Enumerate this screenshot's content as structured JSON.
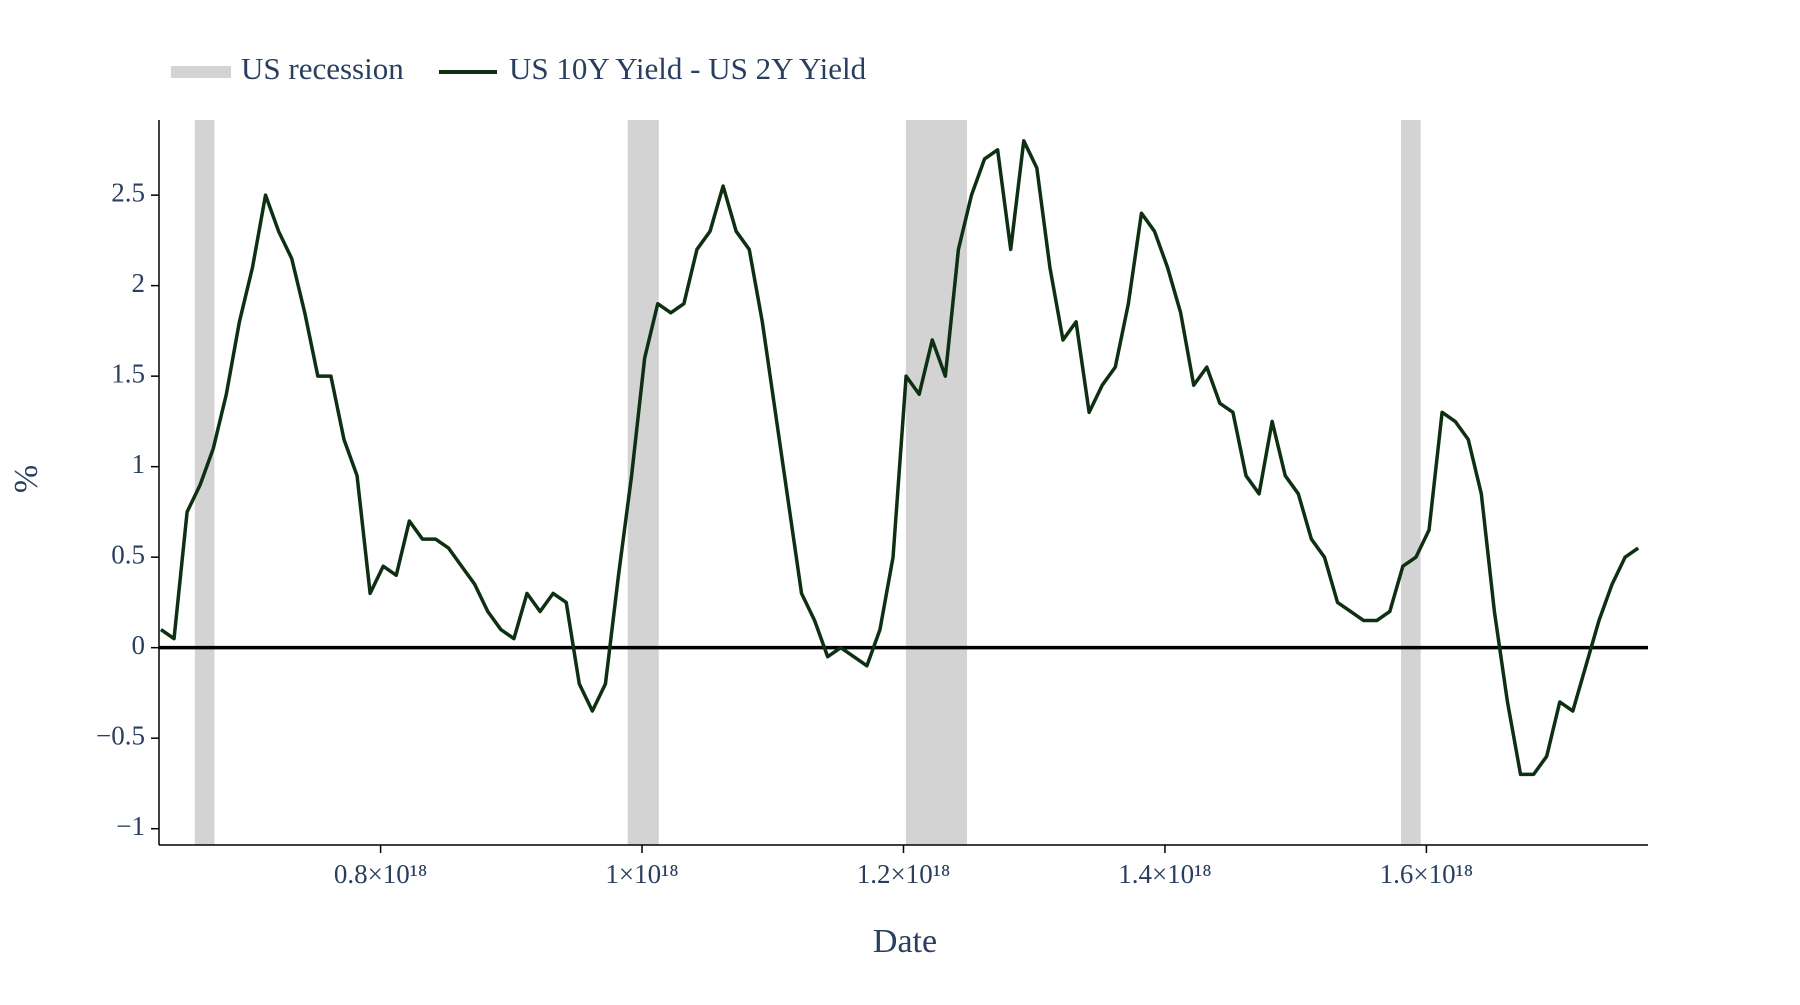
{
  "chart_data": {
    "type": "line",
    "xlabel": "Date",
    "ylabel": "%",
    "xlim": [
      6.305e+17,
      1.7695e+18
    ],
    "ylim": [
      -1.09,
      2.915
    ],
    "xticks": [
      {
        "value": 8e+17,
        "label": "0.8×10¹⁸"
      },
      {
        "value": 1e+18,
        "label": "1×10¹⁸"
      },
      {
        "value": 1.2e+18,
        "label": "1.2×10¹⁸"
      },
      {
        "value": 1.4e+18,
        "label": "1.4×10¹⁸"
      },
      {
        "value": 1.6e+18,
        "label": "1.6×10¹⁸"
      }
    ],
    "yticks": [
      {
        "value": -1,
        "label": "−1"
      },
      {
        "value": -0.5,
        "label": "−0.5"
      },
      0,
      0.5,
      1,
      1.5,
      2,
      2.5
    ],
    "hline": {
      "y": 0,
      "color": "#000000"
    },
    "grid": false,
    "legend": "top-left",
    "x": [
      6.32e+17,
      6.42e+17,
      6.52e+17,
      6.62e+17,
      6.72e+17,
      6.82e+17,
      6.92e+17,
      7.02e+17,
      7.12e+17,
      7.22e+17,
      7.32e+17,
      7.42e+17,
      7.52e+17,
      7.62e+17,
      7.72e+17,
      7.82e+17,
      7.92e+17,
      8.02e+17,
      8.12e+17,
      8.22e+17,
      8.32e+17,
      8.42e+17,
      8.52e+17,
      8.62e+17,
      8.72e+17,
      8.82e+17,
      8.92e+17,
      9.02e+17,
      9.12e+17,
      9.22e+17,
      9.32e+17,
      9.42e+17,
      9.52e+17,
      9.62e+17,
      9.72e+17,
      9.82e+17,
      9.92e+17,
      1.002e+18,
      1.012e+18,
      1.022e+18,
      1.032e+18,
      1.042e+18,
      1.052e+18,
      1.062e+18,
      1.072e+18,
      1.082e+18,
      1.092e+18,
      1.102e+18,
      1.112e+18,
      1.122e+18,
      1.132e+18,
      1.142e+18,
      1.152e+18,
      1.162e+18,
      1.172e+18,
      1.182e+18,
      1.192e+18,
      1.202e+18,
      1.212e+18,
      1.222e+18,
      1.232e+18,
      1.242e+18,
      1.252e+18,
      1.262e+18,
      1.272e+18,
      1.282e+18,
      1.292e+18,
      1.302e+18,
      1.312e+18,
      1.322e+18,
      1.332e+18,
      1.342e+18,
      1.352e+18,
      1.362e+18,
      1.372e+18,
      1.382e+18,
      1.392e+18,
      1.402e+18,
      1.412e+18,
      1.422e+18,
      1.432e+18,
      1.442e+18,
      1.452e+18,
      1.462e+18,
      1.472e+18,
      1.482e+18,
      1.492e+18,
      1.502e+18,
      1.512e+18,
      1.522e+18,
      1.532e+18,
      1.542e+18,
      1.552e+18,
      1.562e+18,
      1.572e+18,
      1.582e+18,
      1.592e+18,
      1.602e+18,
      1.612e+18,
      1.622e+18,
      1.632e+18,
      1.642e+18,
      1.652e+18,
      1.662e+18,
      1.672e+18,
      1.682e+18,
      1.692e+18,
      1.702e+18,
      1.712e+18,
      1.722e+18,
      1.732e+18,
      1.742e+18,
      1.752e+18,
      1.762e+18
    ],
    "series": [
      {
        "name": "US recession",
        "color": "#d3d3d3",
        "ranges": [
          [
            6.579e+17,
            6.729e+17
          ],
          [
            9.89e+17,
            1.0128e+18
          ],
          [
            1.2018e+18,
            1.2486e+18
          ],
          [
            1.5806e+18,
            1.5956e+18
          ]
        ]
      },
      {
        "name": "US 10Y Yield - US 2Y Yield",
        "color": "#0d3012",
        "values": [
          0.1,
          0.05,
          0.75,
          0.9,
          1.1,
          1.4,
          1.8,
          2.1,
          2.5,
          2.3,
          2.15,
          1.85,
          1.5,
          1.5,
          1.15,
          0.95,
          0.3,
          0.45,
          0.4,
          0.7,
          0.6,
          0.6,
          0.55,
          0.45,
          0.35,
          0.2,
          0.1,
          0.05,
          0.3,
          0.2,
          0.3,
          0.25,
          -0.2,
          -0.35,
          -0.2,
          0.4,
          0.95,
          1.6,
          1.9,
          1.85,
          1.9,
          2.2,
          2.3,
          2.55,
          2.3,
          2.2,
          1.8,
          1.3,
          0.8,
          0.3,
          0.15,
          -0.05,
          0.0,
          -0.05,
          -0.1,
          0.1,
          0.5,
          1.5,
          1.4,
          1.7,
          1.5,
          2.2,
          2.5,
          2.7,
          2.75,
          2.2,
          2.8,
          2.65,
          2.1,
          1.7,
          1.8,
          1.3,
          1.45,
          1.55,
          1.9,
          2.4,
          2.3,
          2.1,
          1.85,
          1.45,
          1.55,
          1.35,
          1.3,
          0.95,
          0.85,
          1.25,
          0.95,
          0.85,
          0.6,
          0.5,
          0.25,
          0.2,
          0.15,
          0.15,
          0.2,
          0.45,
          0.5,
          0.65,
          1.3,
          1.25,
          1.15,
          0.85,
          0.2,
          -0.3,
          -0.7,
          -0.7,
          -0.6,
          -0.3,
          -0.35,
          -0.1,
          0.15,
          0.35,
          0.5,
          0.55
        ]
      }
    ]
  }
}
